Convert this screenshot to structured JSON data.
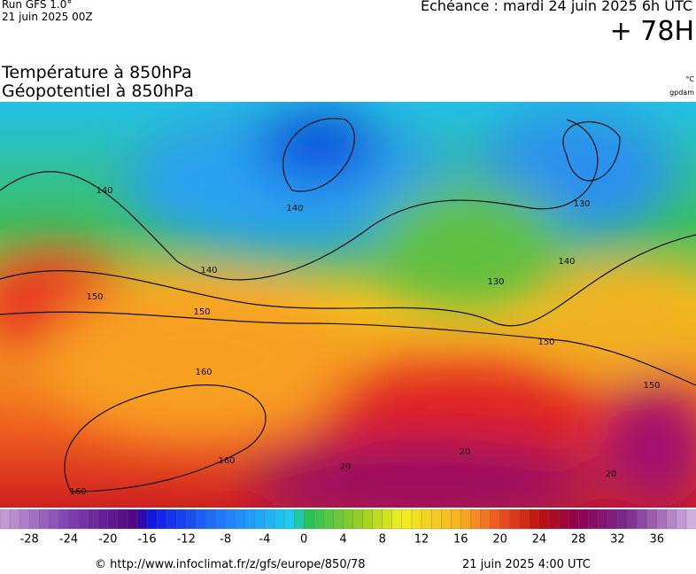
{
  "header": {
    "run": "Run GFS 1.0°",
    "run_date": "21 juin 2025 00Z",
    "echeance": "Echéance : mardi 24 juin 2025 6h UTC",
    "lead": "+ 78H"
  },
  "titles": {
    "line1": "Température à 850hPa",
    "line2": "Géopotentiel à 850hPa",
    "unit_temp": "°C",
    "unit_geo": "gpdam"
  },
  "contour_labels": [
    140,
    140,
    140,
    140,
    150,
    150,
    150,
    150,
    160,
    160,
    160,
    130,
    130,
    20,
    20,
    20
  ],
  "color_scale": {
    "range": [
      -31,
      40
    ],
    "ticks": [
      -28,
      -24,
      -20,
      -16,
      -12,
      -8,
      -4,
      0,
      4,
      8,
      12,
      16,
      20,
      24,
      28,
      32,
      36
    ]
  },
  "footer": {
    "url": "© http://www.infoclimat.fr/z/gfs/europe/850/78",
    "timestamp": "21 juin 2025  4:00 UTC"
  }
}
